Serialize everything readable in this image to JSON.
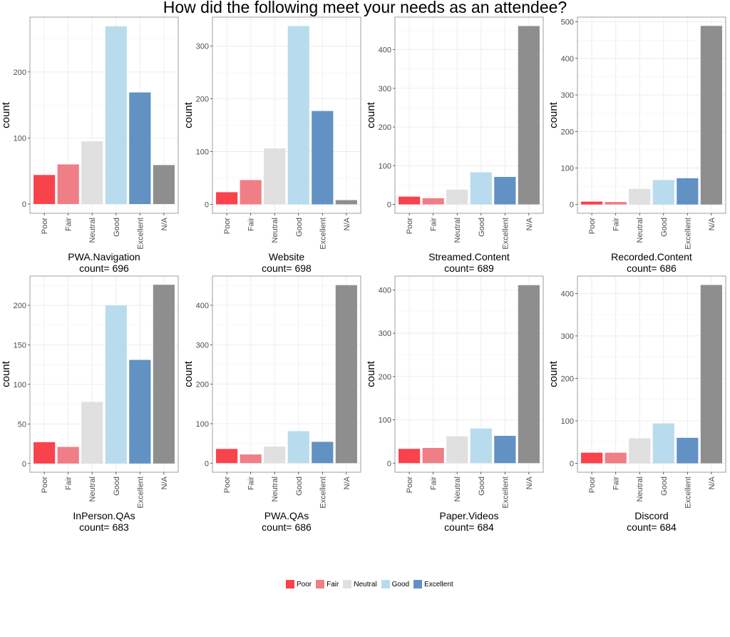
{
  "title": "How did the following meet your needs as an attendee?",
  "colors": {
    "Poor": "#f8434d",
    "Fair": "#ef7e86",
    "Neutral": "#e0e0e0",
    "Good": "#b8dced",
    "Excellent": "#6291c4",
    "N/A": "#8e8e8e",
    "grid": "#ebebeb",
    "panel_border": "#888888"
  },
  "legend": {
    "items": [
      {
        "label": "Poor",
        "color": "#f8434d"
      },
      {
        "label": "Fair",
        "color": "#ef7e86"
      },
      {
        "label": "Neutral",
        "color": "#e0e0e0"
      },
      {
        "label": "Good",
        "color": "#b8dced"
      },
      {
        "label": "Excellent",
        "color": "#6291c4"
      }
    ]
  },
  "chart_data": [
    {
      "type": "bar",
      "title": "PWA.Navigation",
      "subtitle": "count= 696",
      "ylabel": "count",
      "categories": [
        "Poor",
        "Fair",
        "Neutral",
        "Good",
        "Excellent",
        "N/A"
      ],
      "values": [
        44,
        60,
        95,
        269,
        169,
        59
      ],
      "ylim": [
        -14,
        283
      ],
      "yticks": [
        0,
        100,
        200
      ]
    },
    {
      "type": "bar",
      "title": "Website",
      "subtitle": "count= 698",
      "ylabel": "count",
      "categories": [
        "Poor",
        "Fair",
        "Neutral",
        "Good",
        "Excellent",
        "N/A"
      ],
      "values": [
        23,
        46,
        106,
        338,
        177,
        8
      ],
      "ylim": [
        -17,
        355
      ],
      "yticks": [
        0,
        100,
        200,
        300
      ]
    },
    {
      "type": "bar",
      "title": "Streamed.Content",
      "subtitle": "count= 689",
      "ylabel": "count",
      "categories": [
        "Poor",
        "Fair",
        "Neutral",
        "Good",
        "Excellent",
        "N/A"
      ],
      "values": [
        20,
        16,
        38,
        83,
        71,
        461
      ],
      "ylim": [
        -23,
        484
      ],
      "yticks": [
        0,
        100,
        200,
        300,
        400
      ]
    },
    {
      "type": "bar",
      "title": "Recorded.Content",
      "subtitle": "count= 686",
      "ylabel": "count",
      "categories": [
        "Poor",
        "Fair",
        "Neutral",
        "Good",
        "Excellent",
        "N/A"
      ],
      "values": [
        8,
        7,
        43,
        67,
        72,
        489
      ],
      "ylim": [
        -24,
        513
      ],
      "yticks": [
        0,
        100,
        200,
        300,
        400,
        500
      ]
    },
    {
      "type": "bar",
      "title": "InPerson.QAs",
      "subtitle": "count= 683",
      "ylabel": "count",
      "categories": [
        "Poor",
        "Fair",
        "Neutral",
        "Good",
        "Excellent",
        "N/A"
      ],
      "values": [
        27,
        21,
        78,
        200,
        131,
        226
      ],
      "ylim": [
        -11,
        237
      ],
      "yticks": [
        0,
        50,
        100,
        150,
        200
      ]
    },
    {
      "type": "bar",
      "title": "PWA.QAs",
      "subtitle": "count= 686",
      "ylabel": "count",
      "categories": [
        "Poor",
        "Fair",
        "Neutral",
        "Good",
        "Excellent",
        "N/A"
      ],
      "values": [
        36,
        22,
        42,
        81,
        54,
        451
      ],
      "ylim": [
        -23,
        474
      ],
      "yticks": [
        0,
        100,
        200,
        300,
        400
      ]
    },
    {
      "type": "bar",
      "title": "Paper.Videos",
      "subtitle": "count= 684",
      "ylabel": "count",
      "categories": [
        "Poor",
        "Fair",
        "Neutral",
        "Good",
        "Excellent",
        "N/A"
      ],
      "values": [
        33,
        35,
        62,
        80,
        63,
        411
      ],
      "ylim": [
        -21,
        432
      ],
      "yticks": [
        0,
        100,
        200,
        300,
        400
      ]
    },
    {
      "type": "bar",
      "title": "Discord",
      "subtitle": "count= 684",
      "ylabel": "count",
      "categories": [
        "Poor",
        "Fair",
        "Neutral",
        "Good",
        "Excellent",
        "N/A"
      ],
      "values": [
        25,
        25,
        59,
        94,
        60,
        420
      ],
      "ylim": [
        -21,
        441
      ],
      "yticks": [
        0,
        100,
        200,
        300,
        400
      ]
    }
  ]
}
